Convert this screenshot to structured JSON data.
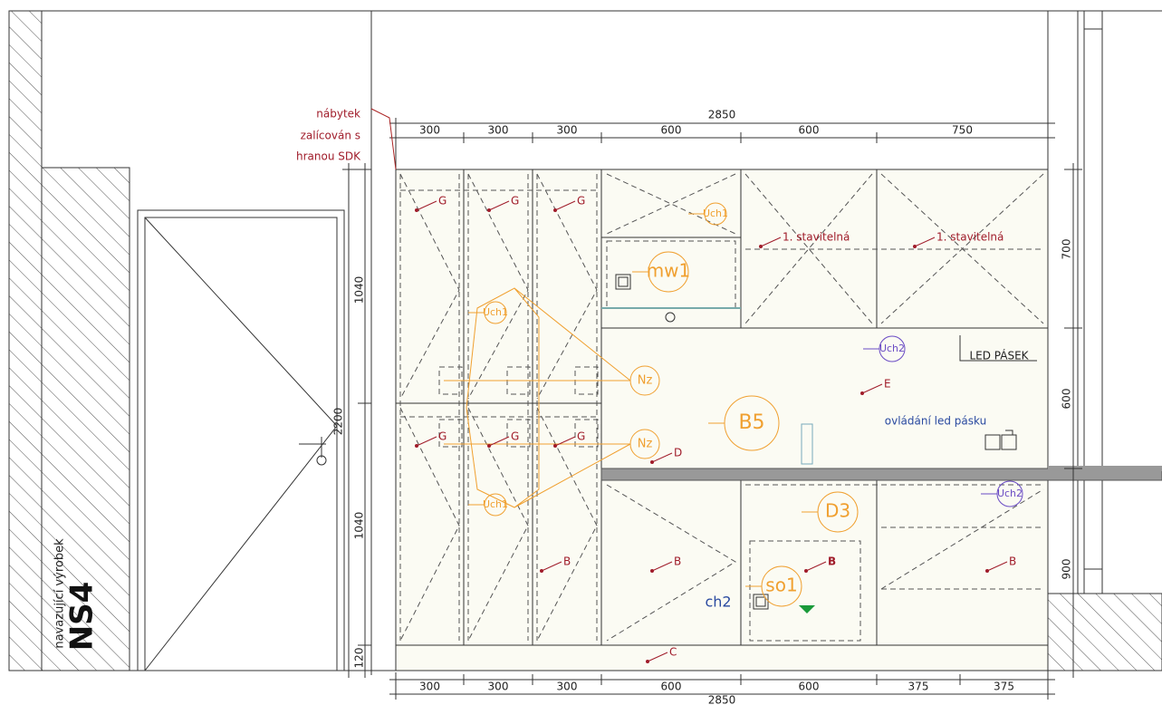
{
  "note": [
    "nábytek",
    "zalícován s",
    "hranou SDK"
  ],
  "dimensions": {
    "top": {
      "total": 2850,
      "parts": [
        300,
        300,
        300,
        600,
        600,
        750
      ]
    },
    "bottom": {
      "total": 2850,
      "parts": [
        300,
        300,
        300,
        600,
        600,
        375,
        375
      ]
    },
    "left": [
      1040,
      2200,
      1040,
      120
    ],
    "right": [
      700,
      600,
      900
    ]
  },
  "labels": [
    "G",
    "G",
    "G",
    "G",
    "G",
    "G",
    "Uch1",
    "Uch1",
    "Uch1",
    "mw1",
    "1. stavitelná",
    "1. stavitelná",
    "Uch2",
    "Uch2",
    "LED PÁSEK",
    "Nz",
    "Nz",
    "E",
    "B5",
    "ovládání led pásku",
    "D",
    "D3",
    "B",
    "B",
    "B",
    "B",
    "so1",
    "ch2",
    "C"
  ],
  "adjacent": {
    "caption": "navazující výrobek",
    "code": "NS4"
  }
}
